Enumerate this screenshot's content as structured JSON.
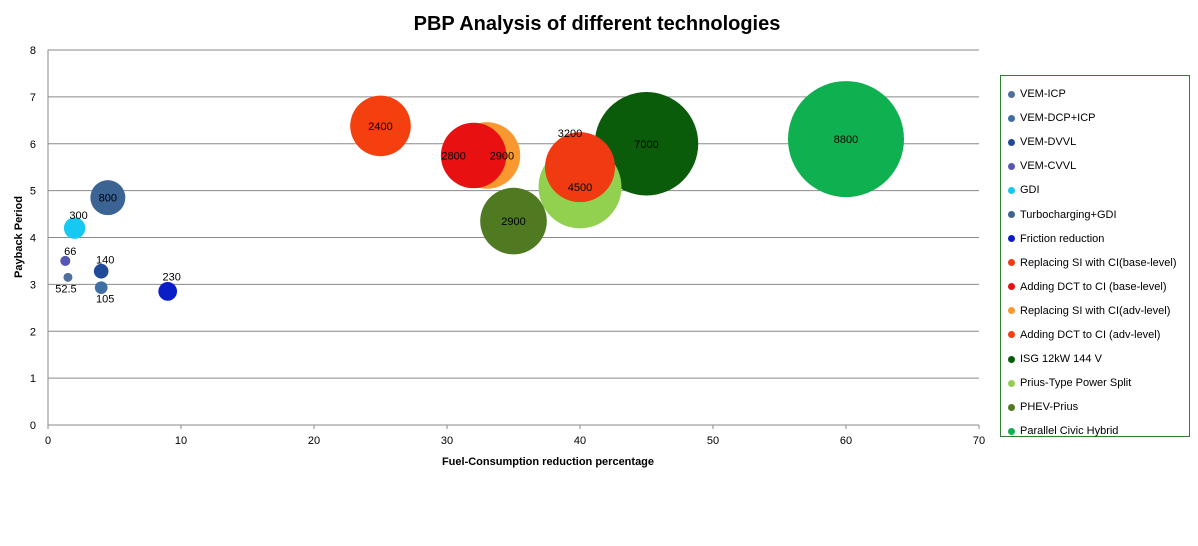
{
  "chart_data": {
    "type": "bubble",
    "title": "PBP Analysis of different technologies",
    "xlabel": "Fuel-Consumption reduction percentage",
    "ylabel": "Payback Period",
    "xlim": [
      0,
      70
    ],
    "ylim": [
      0,
      8
    ],
    "xticks": [
      "0",
      "10",
      "20",
      "30",
      "40",
      "50",
      "60",
      "70"
    ],
    "yticks": [
      "0",
      "1",
      "2",
      "3",
      "4",
      "5",
      "6",
      "7",
      "8"
    ],
    "grid": "horizontal",
    "legend_position": "right",
    "series": [
      {
        "name": "VEM-ICP",
        "x": 1.5,
        "y": 3.15,
        "size": 52.5,
        "label": "52.5",
        "color": "#4f6f9e"
      },
      {
        "name": "VEM-DCP+ICP",
        "x": 4,
        "y": 2.93,
        "size": 105,
        "label": "105",
        "color": "#3f6ea5"
      },
      {
        "name": "VEM-DVVL",
        "x": 4,
        "y": 3.28,
        "size": 140,
        "label": "140",
        "color": "#1f4a9a"
      },
      {
        "name": "VEM-CVVL",
        "x": 1.3,
        "y": 3.5,
        "size": 66,
        "label": "66",
        "color": "#5656b4"
      },
      {
        "name": "GDI",
        "x": 2,
        "y": 4.2,
        "size": 300,
        "label": "300",
        "color": "#16c8f2"
      },
      {
        "name": "Turbocharging+GDI",
        "x": 4.5,
        "y": 4.85,
        "size": 800,
        "label": "800",
        "color": "#3b6494"
      },
      {
        "name": "Friction reduction",
        "x": 9,
        "y": 2.85,
        "size": 230,
        "label": "230",
        "color": "#0a1ec8"
      },
      {
        "name": "Replacing SI with CI(base-level)",
        "x": 40,
        "y": 5.5,
        "size": 3200,
        "label": "3200",
        "color": "#ef3a12"
      },
      {
        "name": "Adding DCT to CI (base-level)",
        "x": 32,
        "y": 5.75,
        "size": 2800,
        "label": "2800",
        "color": "#e81010"
      },
      {
        "name": "Replacing SI with CI(adv-level)",
        "x": 33,
        "y": 5.75,
        "size": 2900,
        "label": "2900",
        "color": "#f8982f"
      },
      {
        "name": "Adding DCT to CI (adv-level)",
        "x": 25,
        "y": 6.38,
        "size": 2400,
        "label": "2400",
        "color": "#f4400e"
      },
      {
        "name": "ISG 12kW 144 V",
        "x": 45,
        "y": 6,
        "size": 7000,
        "label": "7000",
        "color": "#0a5c0a"
      },
      {
        "name": "Prius-Type Power Split",
        "x": 40,
        "y": 5.08,
        "size": 4500,
        "label": "4500",
        "color": "#92d050"
      },
      {
        "name": "PHEV-Prius",
        "x": 35,
        "y": 4.35,
        "size": 2900,
        "label": "2900",
        "color": "#4f7a22"
      },
      {
        "name": "Parallel Civic Hybrid",
        "x": 60,
        "y": 6.1,
        "size": 8800,
        "label": "8800",
        "color": "#0fb050"
      }
    ]
  }
}
